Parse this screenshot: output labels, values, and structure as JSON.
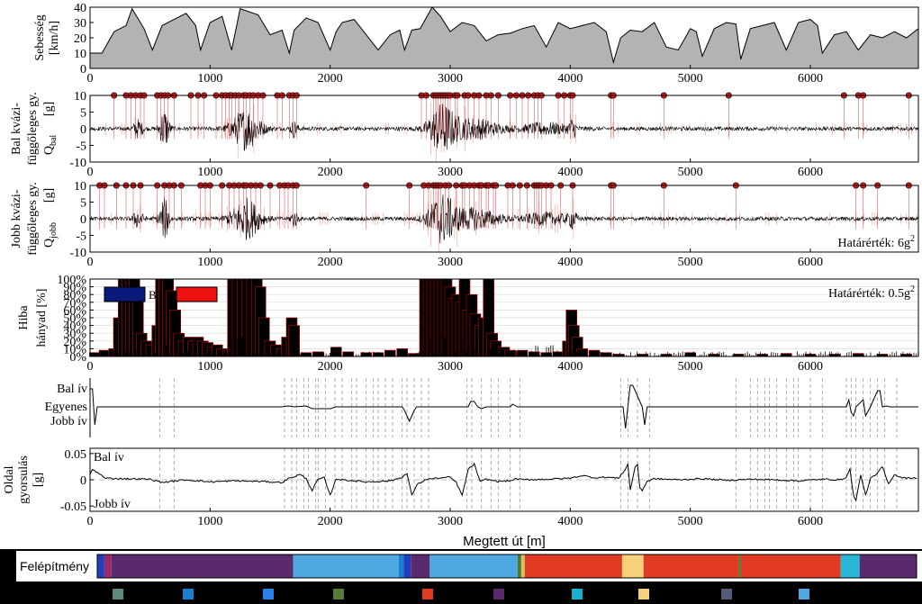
{
  "chart_data": [
    {
      "type": "area",
      "ylabel": [
        "Sebesség",
        "[km/h]"
      ],
      "xlim": [
        0,
        6900
      ],
      "ylim": [
        0,
        40
      ],
      "yticks": [
        0,
        10,
        20,
        30,
        40
      ],
      "xticks": [
        0,
        1000,
        2000,
        3000,
        4000,
        5000,
        6000
      ],
      "x": [
        0,
        100,
        200,
        300,
        350,
        450,
        520,
        600,
        700,
        800,
        880,
        920,
        1000,
        1100,
        1180,
        1250,
        1400,
        1500,
        1600,
        1660,
        1700,
        1800,
        1900,
        2000,
        2050,
        2100,
        2200,
        2300,
        2400,
        2500,
        2580,
        2620,
        2680,
        2750,
        2850,
        2920,
        3000,
        3100,
        3200,
        3300,
        3400,
        3500,
        3600,
        3700,
        3800,
        3900,
        4000,
        4100,
        4200,
        4300,
        4360,
        4420,
        4500,
        4600,
        4700,
        4800,
        4900,
        5000,
        5050,
        5100,
        5200,
        5300,
        5380,
        5420,
        5500,
        5600,
        5700,
        5800,
        5900,
        6000,
        6060,
        6100,
        6200,
        6300,
        6400,
        6500,
        6600,
        6700,
        6800,
        6900
      ],
      "values": [
        10,
        10,
        24,
        28,
        39,
        26,
        12,
        28,
        32,
        36,
        28,
        12,
        30,
        34,
        12,
        39,
        35,
        22,
        25,
        10,
        25,
        33,
        30,
        12,
        24,
        30,
        32,
        22,
        12,
        22,
        25,
        12,
        25,
        26,
        40,
        34,
        24,
        30,
        28,
        18,
        22,
        23,
        26,
        28,
        14,
        30,
        26,
        28,
        30,
        24,
        4,
        20,
        25,
        24,
        30,
        14,
        12,
        26,
        24,
        8,
        26,
        30,
        29,
        6,
        26,
        28,
        30,
        12,
        30,
        32,
        28,
        10,
        22,
        24,
        12,
        22,
        20,
        24,
        20,
        26
      ]
    },
    {
      "type": "line",
      "ylabel": [
        "Bal kvázi-",
        "függőleges gy.",
        "Q",
        "bal",
        "[g]"
      ],
      "xlim": [
        0,
        6900
      ],
      "ylim": [
        -10,
        10
      ],
      "yticks": [
        -10,
        -5,
        0,
        5,
        10
      ],
      "xticks": [
        0,
        1000,
        2000,
        3000,
        4000,
        5000,
        6000
      ],
      "exceedance_markers_x": [
        200,
        300,
        340,
        380,
        420,
        450,
        560,
        590,
        620,
        650,
        700,
        840,
        900,
        950,
        1050,
        1100,
        1130,
        1160,
        1180,
        1210,
        1240,
        1280,
        1300,
        1330,
        1360,
        1400,
        1440,
        1560,
        1600,
        1660,
        1690,
        1720,
        2760,
        2800,
        2860,
        2880,
        2900,
        2920,
        2940,
        2960,
        2980,
        3000,
        3040,
        3060,
        3120,
        3150,
        3200,
        3240,
        3300,
        3340,
        3400,
        3500,
        3550,
        3600,
        3650,
        3700,
        3730,
        3760,
        3900,
        3950,
        4000,
        4020,
        4340,
        4360,
        4780,
        5320,
        6280,
        6400,
        6440,
        6820
      ]
    },
    {
      "type": "line",
      "ylabel": [
        "Jobb kvázi-",
        "függőleges gy.",
        "Q",
        "jobb",
        "[g]"
      ],
      "xlim": [
        0,
        6900
      ],
      "ylim": [
        -10,
        10
      ],
      "yticks": [
        -10,
        -5,
        0,
        5,
        10
      ],
      "xticks": [
        0,
        1000,
        2000,
        3000,
        4000,
        5000,
        6000
      ],
      "annotation": "Határérték: 6g",
      "annotation_sup": "2",
      "exceedance_markers_x": [
        80,
        120,
        220,
        300,
        360,
        420,
        560,
        620,
        660,
        700,
        760,
        920,
        960,
        1000,
        1100,
        1160,
        1200,
        1240,
        1280,
        1300,
        1340,
        1380,
        1420,
        1500,
        1580,
        1620,
        1650,
        1690,
        1720,
        2300,
        2660,
        2780,
        2820,
        2860,
        2880,
        2900,
        2920,
        2960,
        2990,
        3050,
        3100,
        3120,
        3160,
        3200,
        3240,
        3260,
        3300,
        3320,
        3360,
        3380,
        3480,
        3520,
        3580,
        3640,
        3700,
        3720,
        3740,
        3760,
        3800,
        3840,
        3920,
        4020,
        4340,
        4360,
        4780,
        5380,
        6380,
        6440,
        6560,
        6820
      ]
    },
    {
      "type": "bar",
      "ylabel": [
        "Hiba",
        "hányad [%]"
      ],
      "xlim": [
        0,
        6900
      ],
      "ylim": [
        0,
        100
      ],
      "yticks": [
        0,
        10,
        20,
        30,
        40,
        50,
        60,
        70,
        80,
        90,
        100
      ],
      "ytick_labels": [
        "0%",
        "10%",
        "20%",
        "30%",
        "40%",
        "50%",
        "60%",
        "70%",
        "80%",
        "90%",
        "100%"
      ],
      "xticks": [
        0,
        1000,
        2000,
        3000,
        4000,
        5000,
        6000
      ],
      "annotation": "Határérték: 0.5g",
      "annotation_sup": "2",
      "legend_labels": [
        "B",
        ""
      ],
      "legend_colors": [
        "#0a1a7a",
        "#ee1111"
      ],
      "bars": [
        [
          40,
          5
        ],
        [
          120,
          8
        ],
        [
          200,
          10
        ],
        [
          240,
          50
        ],
        [
          280,
          100
        ],
        [
          310,
          100
        ],
        [
          340,
          100
        ],
        [
          370,
          100
        ],
        [
          400,
          80
        ],
        [
          430,
          30
        ],
        [
          470,
          20
        ],
        [
          510,
          15
        ],
        [
          560,
          40
        ],
        [
          590,
          100
        ],
        [
          620,
          100
        ],
        [
          650,
          100
        ],
        [
          680,
          85
        ],
        [
          710,
          60
        ],
        [
          740,
          30
        ],
        [
          780,
          20
        ],
        [
          820,
          25
        ],
        [
          860,
          20
        ],
        [
          900,
          25
        ],
        [
          940,
          20
        ],
        [
          980,
          18
        ],
        [
          1020,
          12
        ],
        [
          1060,
          15
        ],
        [
          1100,
          10
        ],
        [
          1150,
          8
        ],
        [
          1190,
          100
        ],
        [
          1230,
          100
        ],
        [
          1270,
          100
        ],
        [
          1310,
          100
        ],
        [
          1350,
          100
        ],
        [
          1390,
          100
        ],
        [
          1420,
          90
        ],
        [
          1450,
          50
        ],
        [
          1500,
          20
        ],
        [
          1550,
          15
        ],
        [
          1600,
          10
        ],
        [
          1640,
          25
        ],
        [
          1680,
          50
        ],
        [
          1700,
          40
        ],
        [
          1800,
          5
        ],
        [
          1900,
          6
        ],
        [
          2050,
          12
        ],
        [
          2150,
          6
        ],
        [
          2300,
          5
        ],
        [
          2400,
          5
        ],
        [
          2500,
          8
        ],
        [
          2600,
          10
        ],
        [
          2700,
          4
        ],
        [
          2790,
          100
        ],
        [
          2820,
          100
        ],
        [
          2850,
          100
        ],
        [
          2880,
          100
        ],
        [
          2910,
          100
        ],
        [
          2940,
          100
        ],
        [
          2970,
          100
        ],
        [
          3000,
          90
        ],
        [
          3030,
          75
        ],
        [
          3060,
          80
        ],
        [
          3090,
          70
        ],
        [
          3120,
          100
        ],
        [
          3150,
          60
        ],
        [
          3180,
          80
        ],
        [
          3210,
          55
        ],
        [
          3250,
          40
        ],
        [
          3280,
          50
        ],
        [
          3320,
          100
        ],
        [
          3350,
          30
        ],
        [
          3380,
          20
        ],
        [
          3450,
          12
        ],
        [
          3500,
          8
        ],
        [
          3600,
          8
        ],
        [
          3700,
          6
        ],
        [
          3800,
          5
        ],
        [
          3900,
          6
        ],
        [
          3980,
          20
        ],
        [
          4010,
          60
        ],
        [
          4030,
          40
        ],
        [
          4060,
          25
        ],
        [
          4100,
          10
        ],
        [
          4200,
          8
        ],
        [
          4300,
          5
        ],
        [
          4400,
          3
        ],
        [
          4600,
          3
        ],
        [
          4800,
          3
        ],
        [
          5000,
          5
        ],
        [
          5200,
          3
        ],
        [
          5400,
          3
        ],
        [
          5600,
          3
        ],
        [
          5800,
          4
        ],
        [
          6000,
          3
        ],
        [
          6200,
          3
        ],
        [
          6400,
          4
        ],
        [
          6600,
          3
        ],
        [
          6800,
          3
        ]
      ]
    },
    {
      "type": "line",
      "ytick_labels": [
        "Bal ív",
        "Egyenes",
        "Jobb ív"
      ],
      "xlim": [
        0,
        6900
      ],
      "x": [
        0,
        20,
        30,
        40,
        60,
        80,
        1600,
        1650,
        1700,
        1800,
        1850,
        2000,
        2050,
        2600,
        2620,
        2660,
        2700,
        2720,
        2800,
        3150,
        3170,
        3200,
        3230,
        3260,
        3300,
        3500,
        3520,
        3560,
        4440,
        4460,
        4480,
        4500,
        4520,
        4600,
        4620,
        4640,
        4660,
        6300,
        6320,
        6340,
        6360,
        6380,
        6440,
        6460,
        6500,
        6520,
        6560,
        6580,
        6600,
        6640,
        6660,
        6900
      ],
      "values": [
        1,
        1,
        0,
        -1,
        0,
        0,
        0,
        0.05,
        0,
        0.05,
        -0.1,
        -0.1,
        0,
        0,
        -0.2,
        -0.8,
        -0.2,
        0,
        0,
        0,
        0.3,
        0.3,
        0,
        -0.1,
        0,
        0,
        0.15,
        0,
        0,
        -1.2,
        0,
        1.2,
        1.2,
        0,
        -1,
        0,
        0,
        0,
        0.4,
        -0.3,
        -0.5,
        0,
        0.4,
        -0.5,
        0,
        0.3,
        0.9,
        0.9,
        0,
        0.05,
        0,
        0
      ],
      "vlines_x": [
        580,
        700,
        1620,
        1680,
        1720,
        1780,
        1820,
        1880,
        1900,
        1960,
        2040,
        2100,
        2180,
        2220,
        2300,
        2360,
        2400,
        2460,
        2520,
        2600,
        2640,
        2700,
        2760,
        2820,
        3140,
        3180,
        3260,
        3340,
        3400,
        3500,
        3580,
        4420,
        4480,
        4560,
        4660,
        5380,
        5500,
        5560,
        5620,
        5660,
        5720,
        5800,
        5860,
        5900,
        6000,
        6100,
        6300,
        6340,
        6380,
        6440,
        6500,
        6560,
        6620,
        6720
      ]
    },
    {
      "type": "line",
      "ylabel": [
        "Oldal",
        "gyorsulás",
        "[g]"
      ],
      "xlim": [
        0,
        6900
      ],
      "ylim": [
        -0.06,
        0.06
      ],
      "yticks": [
        0.05,
        0,
        -0.05
      ],
      "ytick_labels": [
        "0.05",
        "0",
        "-0.05"
      ],
      "xticks": [
        0,
        1000,
        2000,
        3000,
        4000,
        5000,
        6000
      ],
      "xlabel": "Megtett út [m]",
      "annotations": [
        "Bal ív",
        "Jobb ív"
      ],
      "x": [
        0,
        20,
        50,
        80,
        120,
        300,
        500,
        600,
        800,
        1000,
        1200,
        1400,
        1600,
        1650,
        1750,
        1800,
        1850,
        1900,
        1950,
        2000,
        2050,
        2100,
        2300,
        2500,
        2600,
        2640,
        2680,
        2720,
        2800,
        2900,
        3000,
        3050,
        3100,
        3150,
        3200,
        3250,
        3300,
        3400,
        3500,
        3550,
        3600,
        3800,
        4000,
        4100,
        4200,
        4300,
        4400,
        4460,
        4480,
        4500,
        4540,
        4560,
        4580,
        4600,
        4640,
        4700,
        4900,
        5100,
        5300,
        5500,
        5700,
        5900,
        6100,
        6250,
        6300,
        6330,
        6360,
        6380,
        6420,
        6460,
        6500,
        6550,
        6600,
        6650,
        6700,
        6750,
        6800,
        6850,
        6900
      ],
      "values": [
        0.01,
        0.02,
        0.015,
        0.012,
        0.003,
        0.002,
        0.001,
        -0.005,
        0,
        -0.004,
        -0.002,
        -0.003,
        -0.005,
        0.002,
        0.01,
        0.002,
        -0.02,
        0.001,
        0.004,
        -0.03,
        0.002,
        0,
        -0.004,
        -0.002,
        0.005,
        0.012,
        -0.03,
        -0.01,
        0.001,
        0.003,
        0.005,
        -0.005,
        -0.03,
        0.02,
        0.03,
        -0.004,
        0.001,
        -0.003,
        -0.002,
        0.002,
        0,
        0.001,
        0.003,
        0.008,
        0.004,
        0.005,
        0.003,
        0.02,
        0.03,
        -0.02,
        0.025,
        0.028,
        -0.015,
        -0.02,
        -0.003,
        0.002,
        0,
        0.002,
        -0.001,
        0.001,
        0,
        -0.002,
        0.001,
        0,
        0.005,
        0.02,
        -0.03,
        -0.04,
        0.01,
        -0.03,
        0.002,
        0.01,
        0.025,
        -0.008,
        0.01,
        0.005,
        0.003,
        0.004,
        0.003
      ],
      "vlines_x": [
        580,
        700,
        1620,
        1680,
        1720,
        1780,
        1820,
        1880,
        1900,
        1960,
        2040,
        2100,
        2180,
        2220,
        2300,
        2360,
        2400,
        2460,
        2520,
        2600,
        2640,
        2700,
        2760,
        2820,
        3140,
        3180,
        3260,
        3340,
        3400,
        3500,
        3580,
        4420,
        4480,
        4560,
        4660,
        5380,
        5500,
        5560,
        5620,
        5660,
        5720,
        5800,
        5860,
        5900,
        6000,
        6100,
        6300,
        6340,
        6380,
        6440,
        6500,
        6560,
        6620,
        6720
      ]
    }
  ],
  "felepitmeny": {
    "label": "Felépítmény",
    "segments": [
      {
        "from": 0,
        "to": 60,
        "color": "#1f3fbf"
      },
      {
        "from": 60,
        "to": 120,
        "color": "#9a2a6a"
      },
      {
        "from": 120,
        "to": 1650,
        "color": "#5a2a6e"
      },
      {
        "from": 1650,
        "to": 2540,
        "color": "#4fa8e0"
      },
      {
        "from": 2540,
        "to": 2580,
        "color": "#1a7fd0"
      },
      {
        "from": 2580,
        "to": 2640,
        "color": "#1f3fbf"
      },
      {
        "from": 2640,
        "to": 2800,
        "color": "#5a2a6e"
      },
      {
        "from": 2800,
        "to": 3540,
        "color": "#4fa8e0"
      },
      {
        "from": 3540,
        "to": 3570,
        "color": "#4a7a30"
      },
      {
        "from": 3570,
        "to": 3600,
        "color": "#d9c060"
      },
      {
        "from": 3600,
        "to": 4420,
        "color": "#e03a22"
      },
      {
        "from": 4420,
        "to": 4600,
        "color": "#f5d27a"
      },
      {
        "from": 4600,
        "to": 5400,
        "color": "#e03a22"
      },
      {
        "from": 5400,
        "to": 5420,
        "color": "#4a7a30"
      },
      {
        "from": 5420,
        "to": 6260,
        "color": "#e03a22"
      },
      {
        "from": 6260,
        "to": 6420,
        "color": "#29b6d6"
      },
      {
        "from": 6420,
        "to": 6900,
        "color": "#5a2a6e"
      }
    ],
    "legend_colors": [
      "#5b8a7e",
      "#1a7fd0",
      "#2a7fe8",
      "#5a7a3a",
      "#e03a22",
      "#5a2a6e",
      "#19b0d0",
      "#f5d27a",
      "#555a78",
      "#4fa8e0"
    ]
  },
  "colors": {
    "speed_fill": "#b3b3b3",
    "signal": "#000000",
    "signal_faint": "#f3b6a8",
    "marker": "#d61a1a",
    "bar_outline": "#c00000"
  }
}
